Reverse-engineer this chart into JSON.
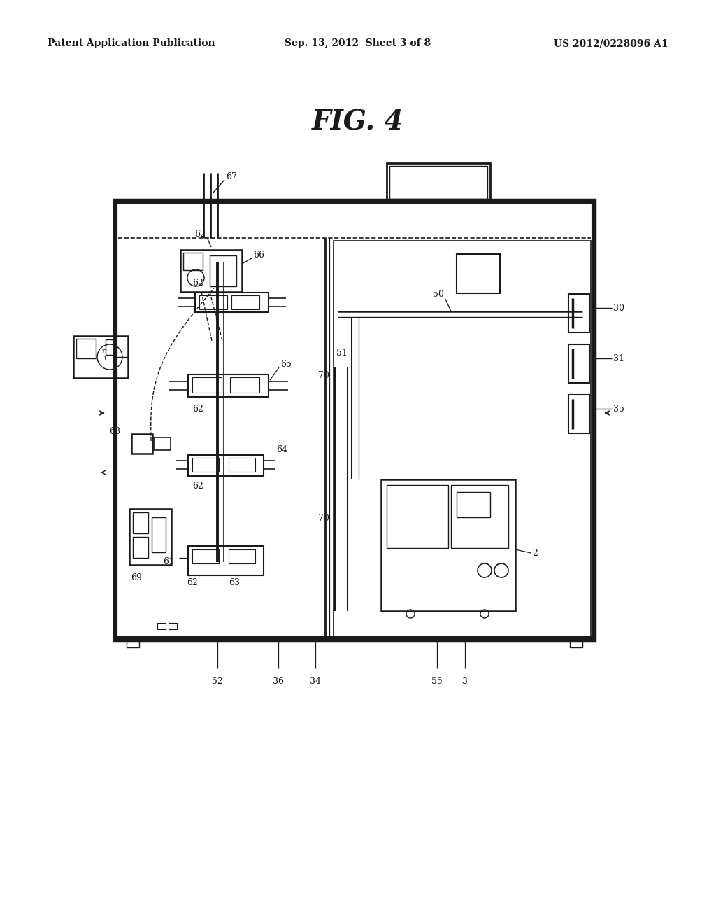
{
  "bg_color": "#ffffff",
  "header_left": "Patent Application Publication",
  "header_center": "Sep. 13, 2012  Sheet 3 of 8",
  "header_right": "US 2012/0228096 A1",
  "fig_title": "FIG. 4",
  "lc": "#1a1a1a"
}
